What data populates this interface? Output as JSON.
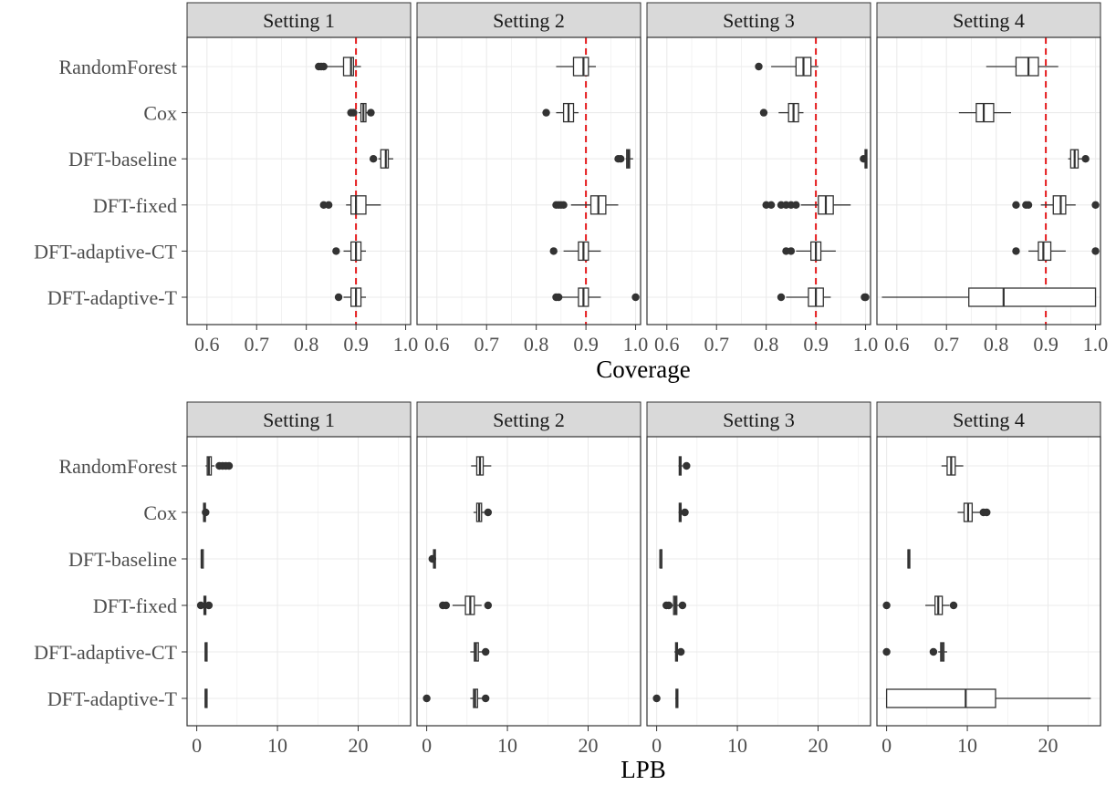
{
  "chart_data": [
    {
      "type": "boxplot",
      "xlabel": "Coverage",
      "ylabel": "",
      "xlim": [
        0.56,
        1.01
      ],
      "x_ticks": [
        "0.6",
        "0.7",
        "0.8",
        "0.9",
        "1.0"
      ],
      "reference_line": {
        "x": 0.9,
        "color": "#e41a1c",
        "style": "dashed"
      },
      "grid": true,
      "categories": [
        "RandomForest",
        "Cox",
        "DFT-baseline",
        "DFT-fixed",
        "DFT-adaptive-CT",
        "DFT-adaptive-T"
      ],
      "facets": [
        {
          "label": "Setting 1",
          "boxes": [
            {
              "min": 0.84,
              "q1": 0.875,
              "median": 0.89,
              "q3": 0.895,
              "max": 0.91,
              "outliers": [
                0.825,
                0.83,
                0.835
              ]
            },
            {
              "min": 0.905,
              "q1": 0.91,
              "median": 0.915,
              "q3": 0.92,
              "max": 0.925,
              "outliers": [
                0.89,
                0.895,
                0.93
              ]
            },
            {
              "min": 0.945,
              "q1": 0.95,
              "median": 0.96,
              "q3": 0.965,
              "max": 0.975,
              "outliers": [
                0.935
              ]
            },
            {
              "min": 0.88,
              "q1": 0.89,
              "median": 0.9,
              "q3": 0.92,
              "max": 0.95,
              "outliers": [
                0.835,
                0.845
              ]
            },
            {
              "min": 0.875,
              "q1": 0.89,
              "median": 0.9,
              "q3": 0.91,
              "max": 0.92,
              "outliers": [
                0.86
              ]
            },
            {
              "min": 0.875,
              "q1": 0.89,
              "median": 0.9,
              "q3": 0.91,
              "max": 0.92,
              "outliers": [
                0.865
              ]
            }
          ]
        },
        {
          "label": "Setting 2",
          "boxes": [
            {
              "min": 0.84,
              "q1": 0.875,
              "median": 0.895,
              "q3": 0.905,
              "max": 0.92,
              "outliers": []
            },
            {
              "min": 0.84,
              "q1": 0.855,
              "median": 0.865,
              "q3": 0.875,
              "max": 0.885,
              "outliers": [
                0.82
              ]
            },
            {
              "min": 0.98,
              "q1": 0.982,
              "median": 0.985,
              "q3": 0.988,
              "max": 0.995,
              "outliers": [
                0.965,
                0.97
              ]
            },
            {
              "min": 0.87,
              "q1": 0.91,
              "median": 0.925,
              "q3": 0.94,
              "max": 0.965,
              "outliers": [
                0.84,
                0.845,
                0.85,
                0.855
              ]
            },
            {
              "min": 0.855,
              "q1": 0.885,
              "median": 0.895,
              "q3": 0.905,
              "max": 0.93,
              "outliers": [
                0.835
              ]
            },
            {
              "min": 0.85,
              "q1": 0.885,
              "median": 0.895,
              "q3": 0.905,
              "max": 0.93,
              "outliers": [
                0.84,
                0.845,
                1.0
              ]
            }
          ]
        },
        {
          "label": "Setting 3",
          "boxes": [
            {
              "min": 0.81,
              "q1": 0.86,
              "median": 0.875,
              "q3": 0.89,
              "max": 0.905,
              "outliers": [
                0.785
              ]
            },
            {
              "min": 0.825,
              "q1": 0.845,
              "median": 0.855,
              "q3": 0.865,
              "max": 0.875,
              "outliers": [
                0.795
              ]
            },
            {
              "min": 0.998,
              "q1": 0.999,
              "median": 1.0,
              "q3": 1.0,
              "max": 1.0,
              "outliers": [
                0.996
              ]
            },
            {
              "min": 0.87,
              "q1": 0.905,
              "median": 0.92,
              "q3": 0.935,
              "max": 0.97,
              "outliers": [
                0.8,
                0.81,
                0.83,
                0.84,
                0.85,
                0.86
              ]
            },
            {
              "min": 0.86,
              "q1": 0.89,
              "median": 0.9,
              "q3": 0.91,
              "max": 0.94,
              "outliers": [
                0.84,
                0.85
              ]
            },
            {
              "min": 0.84,
              "q1": 0.885,
              "median": 0.9,
              "q3": 0.915,
              "max": 0.93,
              "outliers": [
                0.83,
                0.998,
                1.0
              ]
            }
          ]
        },
        {
          "label": "Setting 4",
          "boxes": [
            {
              "min": 0.78,
              "q1": 0.84,
              "median": 0.865,
              "q3": 0.885,
              "max": 0.925,
              "outliers": []
            },
            {
              "min": 0.725,
              "q1": 0.76,
              "median": 0.775,
              "q3": 0.795,
              "max": 0.83,
              "outliers": []
            },
            {
              "min": 0.945,
              "q1": 0.95,
              "median": 0.958,
              "q3": 0.965,
              "max": 0.975,
              "outliers": [
                0.98
              ]
            },
            {
              "min": 0.89,
              "q1": 0.915,
              "median": 0.93,
              "q3": 0.94,
              "max": 0.96,
              "outliers": [
                0.84,
                0.86,
                0.865,
                1.0
              ]
            },
            {
              "min": 0.865,
              "q1": 0.885,
              "median": 0.895,
              "q3": 0.91,
              "max": 0.94,
              "outliers": [
                0.84,
                1.0
              ]
            },
            {
              "min": 0.57,
              "q1": 0.745,
              "median": 0.815,
              "q3": 1.0,
              "max": 1.0,
              "outliers": []
            }
          ]
        }
      ]
    },
    {
      "type": "boxplot",
      "xlabel": "LPB",
      "ylabel": "",
      "xlim": [
        -1.2,
        26.5
      ],
      "x_ticks": [
        "0",
        "10",
        "20"
      ],
      "grid": true,
      "categories": [
        "RandomForest",
        "Cox",
        "DFT-baseline",
        "DFT-fixed",
        "DFT-adaptive-CT",
        "DFT-adaptive-T"
      ],
      "facets": [
        {
          "label": "Setting 1",
          "boxes": [
            {
              "min": 1.1,
              "q1": 1.3,
              "median": 1.5,
              "q3": 1.8,
              "max": 2.2,
              "outliers": [
                2.8,
                3.2,
                3.6,
                4.0
              ]
            },
            {
              "min": 0.8,
              "q1": 0.85,
              "median": 0.9,
              "q3": 0.95,
              "max": 1.0,
              "outliers": [
                1.1
              ]
            },
            {
              "min": 0.55,
              "q1": 0.58,
              "median": 0.6,
              "q3": 0.62,
              "max": 0.65,
              "outliers": []
            },
            {
              "min": 0.7,
              "q1": 0.9,
              "median": 1.0,
              "q3": 1.1,
              "max": 1.3,
              "outliers": [
                0.5,
                1.5
              ]
            },
            {
              "min": 1.0,
              "q1": 1.05,
              "median": 1.1,
              "q3": 1.15,
              "max": 1.2,
              "outliers": []
            },
            {
              "min": 1.0,
              "q1": 1.05,
              "median": 1.1,
              "q3": 1.15,
              "max": 1.2,
              "outliers": []
            }
          ]
        },
        {
          "label": "Setting 2",
          "boxes": [
            {
              "min": 5.5,
              "q1": 6.2,
              "median": 6.6,
              "q3": 7.0,
              "max": 8.0,
              "outliers": []
            },
            {
              "min": 5.8,
              "q1": 6.2,
              "median": 6.5,
              "q3": 6.8,
              "max": 7.2,
              "outliers": [
                7.6
              ]
            },
            {
              "min": 0.8,
              "q1": 0.85,
              "median": 0.9,
              "q3": 0.95,
              "max": 1.0,
              "outliers": [
                0.7
              ]
            },
            {
              "min": 3.2,
              "q1": 4.8,
              "median": 5.4,
              "q3": 5.9,
              "max": 6.8,
              "outliers": [
                2.0,
                2.4,
                7.6
              ]
            },
            {
              "min": 5.4,
              "q1": 5.9,
              "median": 6.1,
              "q3": 6.4,
              "max": 7.0,
              "outliers": [
                7.3
              ]
            },
            {
              "min": 5.4,
              "q1": 5.8,
              "median": 6.0,
              "q3": 6.3,
              "max": 7.0,
              "outliers": [
                0.0,
                7.3
              ]
            }
          ]
        },
        {
          "label": "Setting 3",
          "boxes": [
            {
              "min": 2.7,
              "q1": 2.8,
              "median": 2.9,
              "q3": 3.0,
              "max": 3.2,
              "outliers": [
                3.7
              ]
            },
            {
              "min": 2.7,
              "q1": 2.8,
              "median": 2.9,
              "q3": 3.0,
              "max": 3.1,
              "outliers": [
                3.5
              ]
            },
            {
              "min": 0.4,
              "q1": 0.42,
              "median": 0.45,
              "q3": 0.48,
              "max": 0.5,
              "outliers": []
            },
            {
              "min": 1.8,
              "q1": 2.1,
              "median": 2.3,
              "q3": 2.5,
              "max": 2.9,
              "outliers": [
                1.2,
                1.5,
                3.2
              ]
            },
            {
              "min": 2.2,
              "q1": 2.35,
              "median": 2.45,
              "q3": 2.55,
              "max": 2.7,
              "outliers": [
                3.0
              ]
            },
            {
              "min": 2.3,
              "q1": 2.4,
              "median": 2.5,
              "q3": 2.6,
              "max": 2.7,
              "outliers": [
                0.0
              ]
            }
          ]
        },
        {
          "label": "Setting 4",
          "boxes": [
            {
              "min": 6.8,
              "q1": 7.5,
              "median": 8.0,
              "q3": 8.5,
              "max": 9.5,
              "outliers": []
            },
            {
              "min": 8.8,
              "q1": 9.6,
              "median": 10.1,
              "q3": 10.6,
              "max": 11.6,
              "outliers": [
                12.0,
                12.4
              ]
            },
            {
              "min": 2.6,
              "q1": 2.65,
              "median": 2.7,
              "q3": 2.75,
              "max": 2.8,
              "outliers": []
            },
            {
              "min": 4.8,
              "q1": 6.0,
              "median": 6.4,
              "q3": 6.9,
              "max": 7.8,
              "outliers": [
                0.0,
                8.3
              ]
            },
            {
              "min": 6.4,
              "q1": 6.7,
              "median": 6.9,
              "q3": 7.1,
              "max": 7.5,
              "outliers": [
                0.0,
                5.8
              ]
            },
            {
              "min": 0.0,
              "q1": 0.0,
              "median": 9.8,
              "q3": 13.5,
              "max": 25.3,
              "outliers": []
            }
          ]
        }
      ]
    }
  ]
}
